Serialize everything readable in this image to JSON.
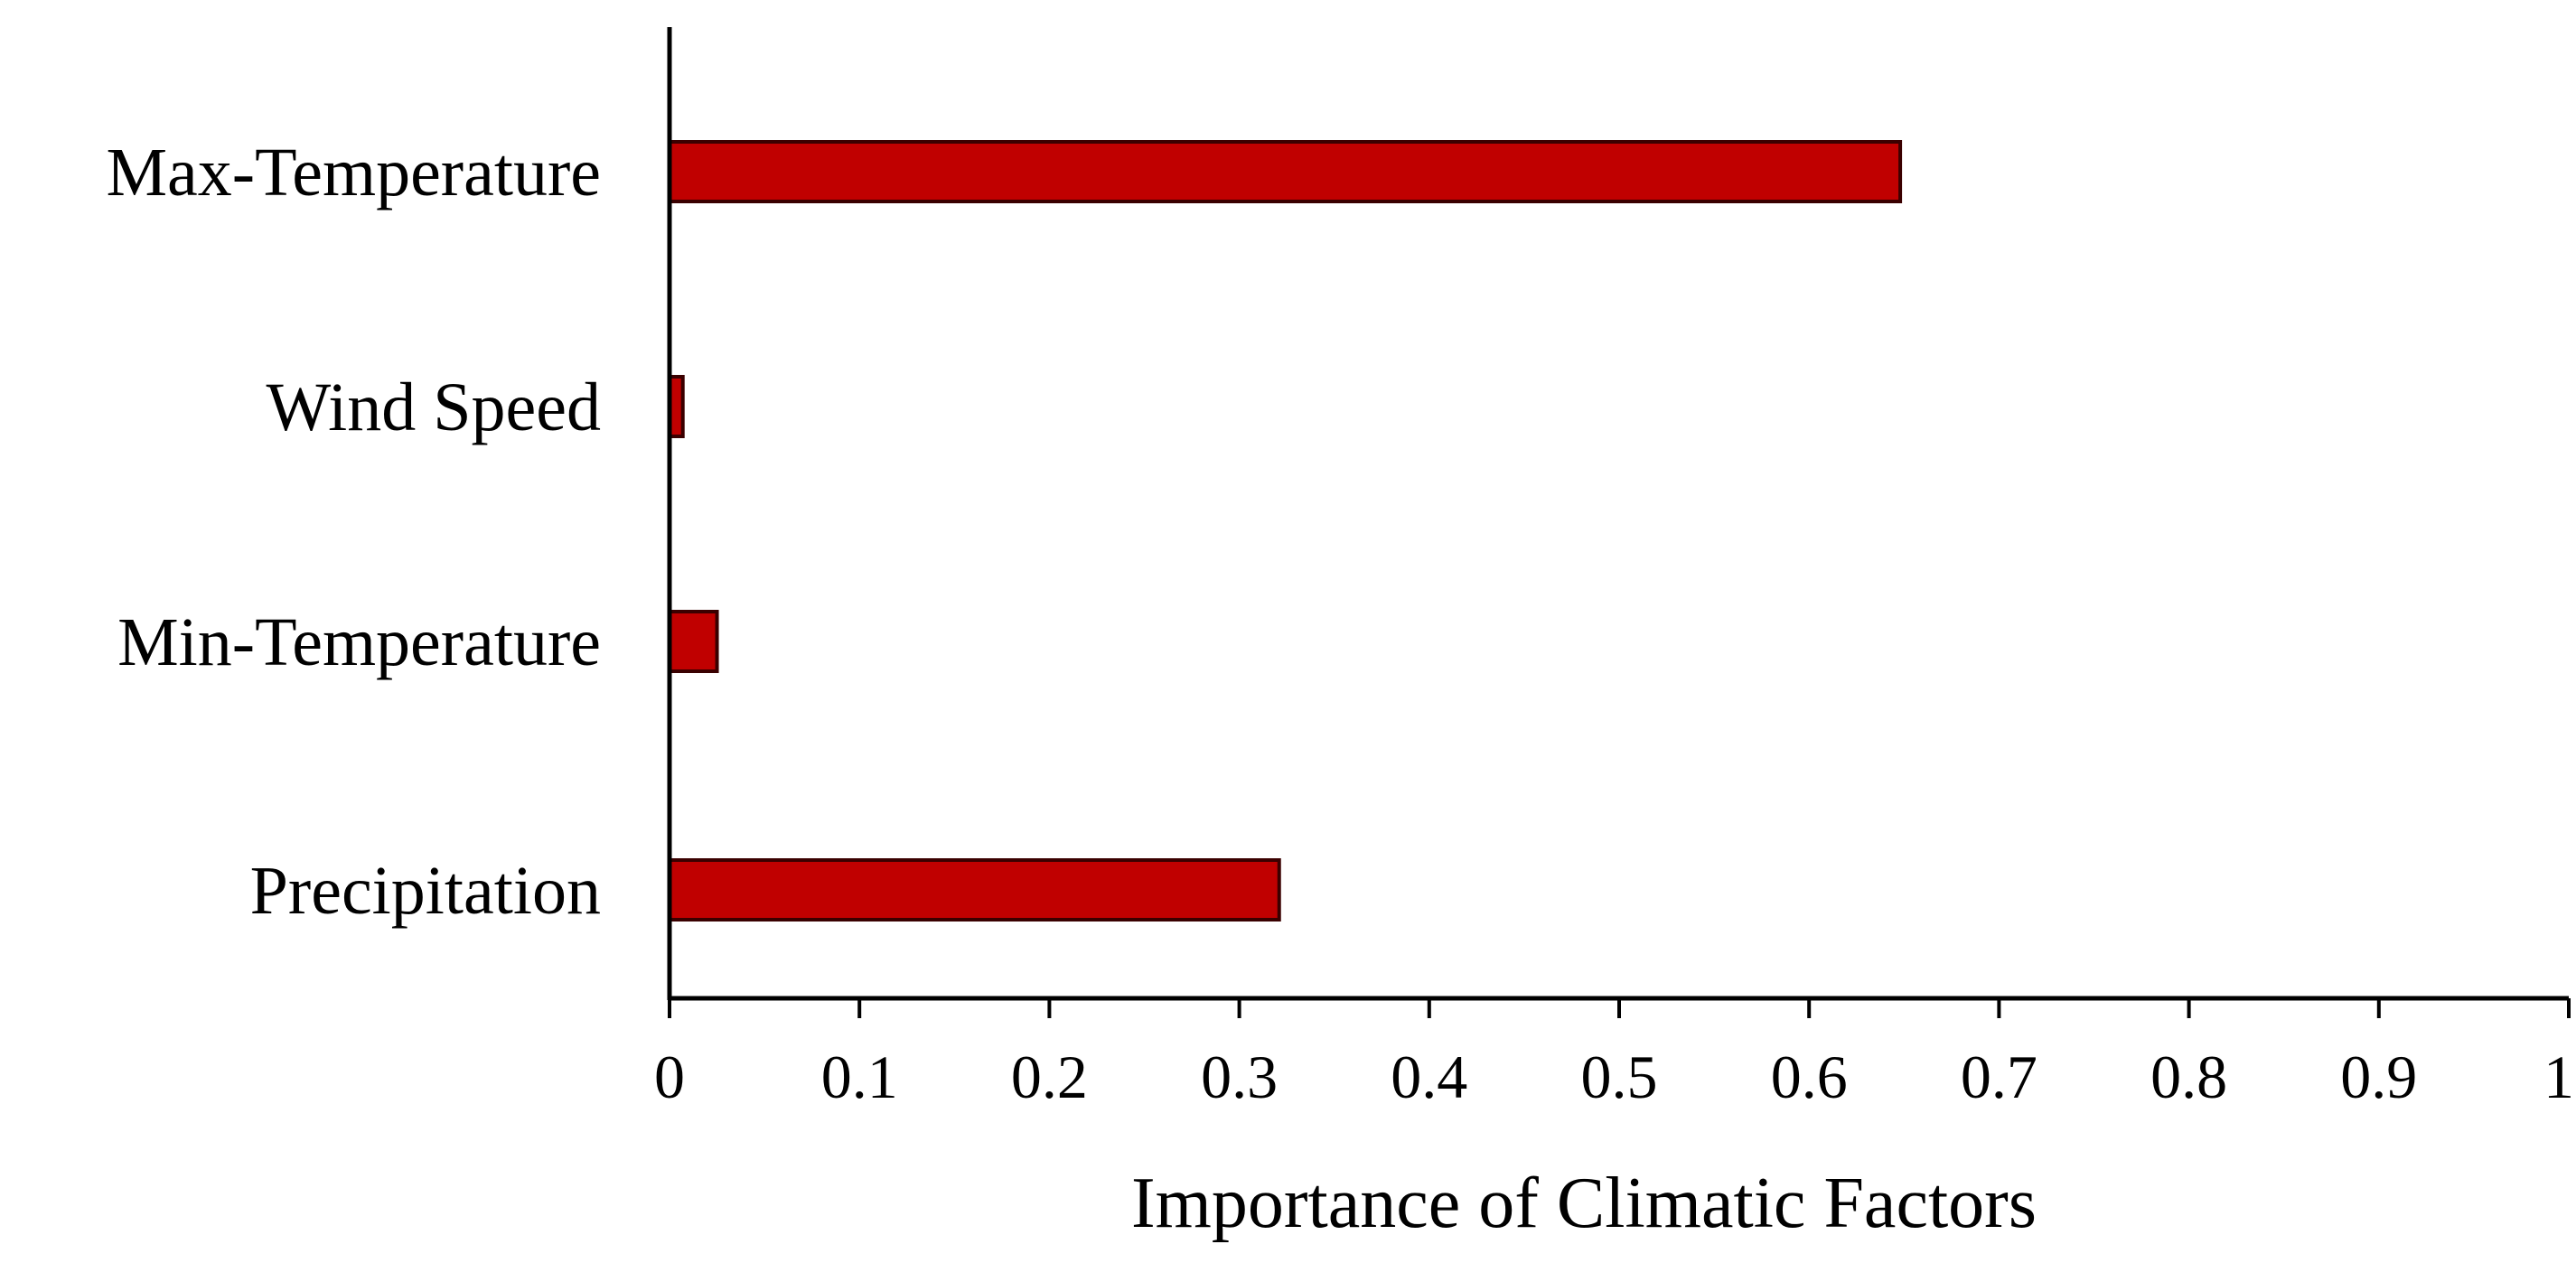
{
  "chart_data": {
    "type": "bar",
    "orientation": "horizontal",
    "title": "",
    "xlabel": "Importance of Climatic Factors",
    "ylabel": "",
    "categories": [
      "Max-Temperature",
      "Wind Speed",
      "Min-Temperature",
      "Precipitation"
    ],
    "values": [
      0.648,
      0.007,
      0.025,
      0.321
    ],
    "xlim": [
      0,
      1
    ],
    "xticks": [
      "0",
      "0.1",
      "0.2",
      "0.3",
      "0.4",
      "0.5",
      "0.6",
      "0.7",
      "0.8",
      "0.9",
      "1"
    ],
    "grid": false,
    "legend": "none",
    "colors": {
      "bar_fill": "#c00000",
      "bar_edge": "#3a0000",
      "axis": "#000000"
    }
  }
}
